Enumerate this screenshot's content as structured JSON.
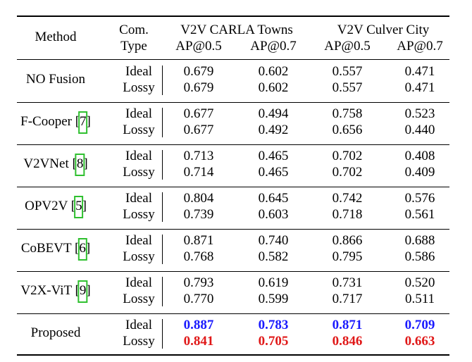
{
  "header": {
    "method": "Method",
    "com_type_line1": "Com.",
    "com_type_line2": "Type",
    "group1": "V2V CARLA Towns",
    "group2": "V2V Culver City",
    "ap05": "AP@0.5",
    "ap07": "AP@0.7"
  },
  "rows": [
    {
      "method": "NO Fusion",
      "cite": "",
      "ideal_label": "Ideal",
      "lossy_label": "Lossy",
      "ideal": [
        "0.679",
        "0.602",
        "0.557",
        "0.471"
      ],
      "lossy": [
        "0.679",
        "0.602",
        "0.557",
        "0.471"
      ]
    },
    {
      "method": "F-Cooper",
      "cite": "7",
      "ideal_label": "Ideal",
      "lossy_label": "Lossy",
      "ideal": [
        "0.677",
        "0.494",
        "0.758",
        "0.523"
      ],
      "lossy": [
        "0.677",
        "0.492",
        "0.656",
        "0.440"
      ]
    },
    {
      "method": "V2VNet",
      "cite": "8",
      "ideal_label": "Ideal",
      "lossy_label": "Lossy",
      "ideal": [
        "0.713",
        "0.465",
        "0.702",
        "0.408"
      ],
      "lossy": [
        "0.714",
        "0.465",
        "0.702",
        "0.409"
      ]
    },
    {
      "method": "OPV2V",
      "cite": "5",
      "ideal_label": "Ideal",
      "lossy_label": "Lossy",
      "ideal": [
        "0.804",
        "0.645",
        "0.742",
        "0.576"
      ],
      "lossy": [
        "0.739",
        "0.603",
        "0.718",
        "0.561"
      ]
    },
    {
      "method": "CoBEVT",
      "cite": "6",
      "ideal_label": "Ideal",
      "lossy_label": "Lossy",
      "ideal": [
        "0.871",
        "0.740",
        "0.866",
        "0.688"
      ],
      "lossy": [
        "0.768",
        "0.582",
        "0.795",
        "0.586"
      ]
    },
    {
      "method": "V2X-ViT",
      "cite": "9",
      "ideal_label": "Ideal",
      "lossy_label": "Lossy",
      "ideal": [
        "0.793",
        "0.619",
        "0.731",
        "0.520"
      ],
      "lossy": [
        "0.770",
        "0.599",
        "0.717",
        "0.511"
      ]
    },
    {
      "method": "Proposed",
      "cite": "",
      "ideal_label": "Ideal",
      "lossy_label": "Lossy",
      "ideal": [
        "0.887",
        "0.783",
        "0.871",
        "0.709"
      ],
      "lossy": [
        "0.841",
        "0.705",
        "0.846",
        "0.663"
      ]
    }
  ],
  "colors": {
    "best_ideal": "#1a1aff",
    "best_lossy": "#e01818",
    "citation_box": "#2fc02f"
  }
}
